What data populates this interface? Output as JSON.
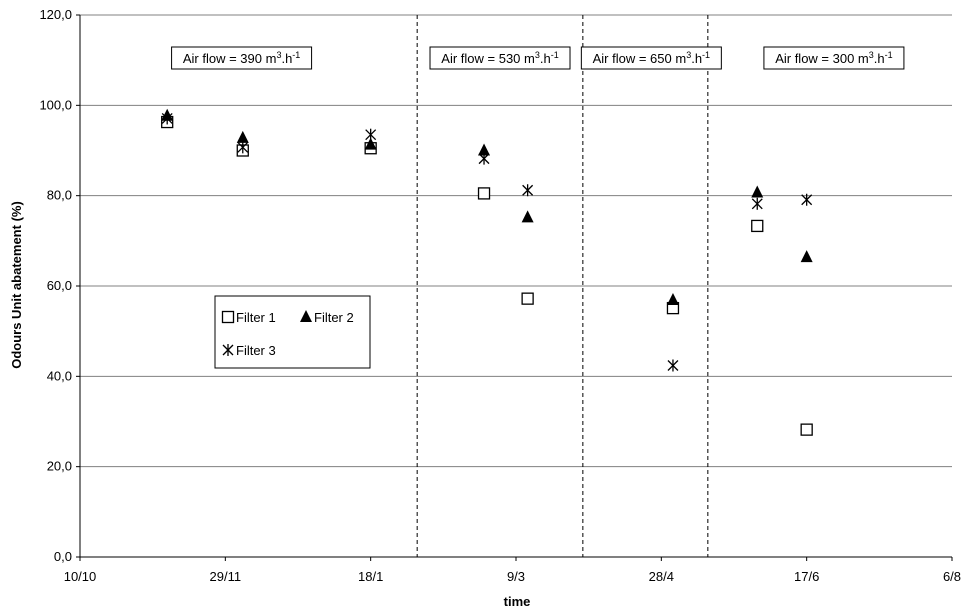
{
  "chart_data": {
    "type": "scatter",
    "title": "",
    "xlabel": "time",
    "ylabel": "Odours Unit abatement (%)",
    "x_is_date": true,
    "xlim": [
      "10/10",
      "6/8"
    ],
    "x_ticks": [
      {
        "label": "10/10",
        "date": "10/10"
      },
      {
        "label": "29/11",
        "date": "29/11"
      },
      {
        "label": "18/1",
        "date": "18/1"
      },
      {
        "label": "9/3",
        "date": "9/3"
      },
      {
        "label": "28/4",
        "date": "28/4"
      },
      {
        "label": "17/6",
        "date": "17/6"
      },
      {
        "label": "6/8",
        "date": "6/8"
      }
    ],
    "ylim": [
      0,
      120
    ],
    "y_ticks": [
      "0,0",
      "20,0",
      "40,0",
      "60,0",
      "80,0",
      "100,0",
      "120,0"
    ],
    "grid": "horizontal",
    "series": [
      {
        "name": "Filter 1",
        "marker": "open-square",
        "points": [
          {
            "x": "9/11",
            "y": 96.3
          },
          {
            "x": "5/12",
            "y": 90.0
          },
          {
            "x": "18/1",
            "y": 90.5
          },
          {
            "x": "26/2",
            "y": 80.5
          },
          {
            "x": "13/3",
            "y": 57.2
          },
          {
            "x": "2/5",
            "y": 55.1
          },
          {
            "x": "31/5",
            "y": 73.3
          },
          {
            "x": "17/6",
            "y": 28.2
          }
        ]
      },
      {
        "name": "Filter 2",
        "marker": "filled-triangle",
        "points": [
          {
            "x": "9/11",
            "y": 97.7
          },
          {
            "x": "5/12",
            "y": 92.8
          },
          {
            "x": "18/1",
            "y": 91.3
          },
          {
            "x": "26/2",
            "y": 90.0
          },
          {
            "x": "13/3",
            "y": 75.2
          },
          {
            "x": "2/5",
            "y": 56.9
          },
          {
            "x": "31/5",
            "y": 80.7
          },
          {
            "x": "17/6",
            "y": 66.4
          }
        ]
      },
      {
        "name": "Filter 3",
        "marker": "asterisk",
        "points": [
          {
            "x": "9/11",
            "y": 97.1
          },
          {
            "x": "5/12",
            "y": 90.7
          },
          {
            "x": "18/1",
            "y": 93.5
          },
          {
            "x": "26/2",
            "y": 88.2
          },
          {
            "x": "13/3",
            "y": 81.2
          },
          {
            "x": "2/5",
            "y": 42.4
          },
          {
            "x": "31/5",
            "y": 78.2
          },
          {
            "x": "17/6",
            "y": 79.1
          }
        ]
      }
    ],
    "dividers": [
      {
        "x": "3/2"
      },
      {
        "x": "1/4"
      },
      {
        "x": "14/5"
      }
    ],
    "annotations": [
      {
        "label_prefix": "Air flow = 390 m",
        "sup1": "3",
        "mid": ".h",
        "sup2": "-1"
      },
      {
        "label_prefix": "Air flow = 530 m",
        "sup1": "3",
        "mid": ".h",
        "sup2": "-1"
      },
      {
        "label_prefix": "Air flow = 650 m",
        "sup1": "3",
        "mid": ".h",
        "sup2": "-1"
      },
      {
        "label_prefix": "Air flow = 300 m",
        "sup1": "3",
        "mid": ".h",
        "sup2": "-1"
      }
    ],
    "legend_position": "left-middle",
    "colors": {
      "marker": "#000000",
      "grid": "#808080"
    }
  }
}
